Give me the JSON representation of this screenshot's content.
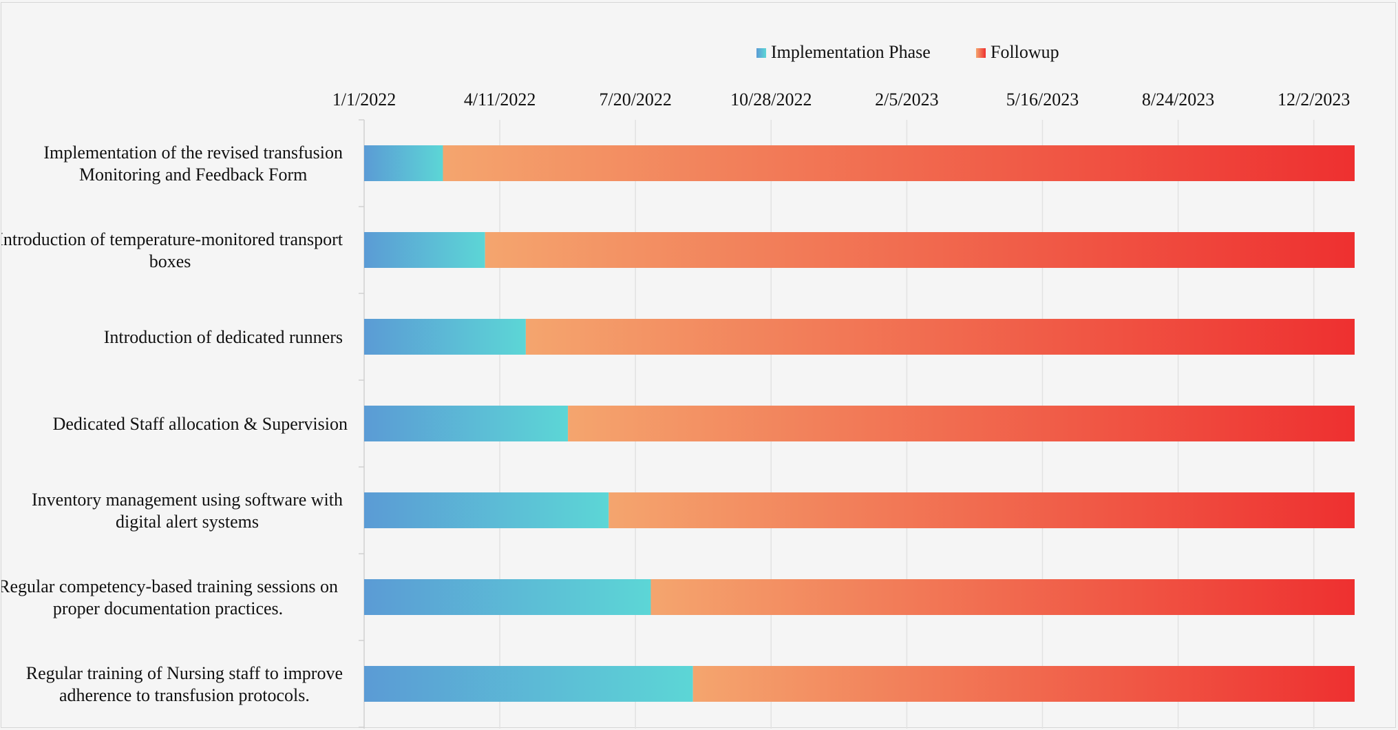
{
  "chart_data": {
    "type": "bar",
    "orientation": "horizontal-stacked",
    "title": "",
    "x_axis_position": "top",
    "x_tick_labels": [
      "1/1/2022",
      "4/11/2022",
      "7/20/2022",
      "10/28/2022",
      "2/5/2023",
      "5/16/2023",
      "8/24/2023",
      "12/2/2023"
    ],
    "xlim": [
      "2022-01-01",
      "2023-12-31"
    ],
    "grid": true,
    "legend_position": "top",
    "categories": [
      [
        "Implementation of the revised transfusion",
        "Monitoring and Feedback Form"
      ],
      [
        "Introduction of temperature-monitored transport",
        "boxes"
      ],
      [
        "Introduction of dedicated runners"
      ],
      [
        "Dedicated Staff allocation & Supervision"
      ],
      [
        "Inventory management using software with",
        "digital alert systems"
      ],
      [
        "Regular competency-based training sessions on",
        "proper documentation practices."
      ],
      [
        "Regular training of Nursing staff to improve",
        "adherence to transfusion protocols."
      ]
    ],
    "series": [
      {
        "name": "Implementation Phase",
        "start": [
          "2022-01-01",
          "2022-01-01",
          "2022-01-01",
          "2022-01-01",
          "2022-01-01",
          "2022-01-01",
          "2022-01-01"
        ],
        "end": [
          "2022-02-28",
          "2022-03-31",
          "2022-04-30",
          "2022-05-31",
          "2022-06-30",
          "2022-07-31",
          "2022-08-31"
        ],
        "color_start": "#5b9bd5",
        "color_end": "#5cd6d6"
      },
      {
        "name": "Followup",
        "start": [
          "2022-02-28",
          "2022-03-31",
          "2022-04-30",
          "2022-05-31",
          "2022-06-30",
          "2022-07-31",
          "2022-08-31"
        ],
        "end": [
          "2023-12-31",
          "2023-12-31",
          "2023-12-31",
          "2023-12-31",
          "2023-12-31",
          "2023-12-31",
          "2023-12-31"
        ],
        "color_start": "#f4a56e",
        "color_end": "#ee3030"
      }
    ]
  }
}
